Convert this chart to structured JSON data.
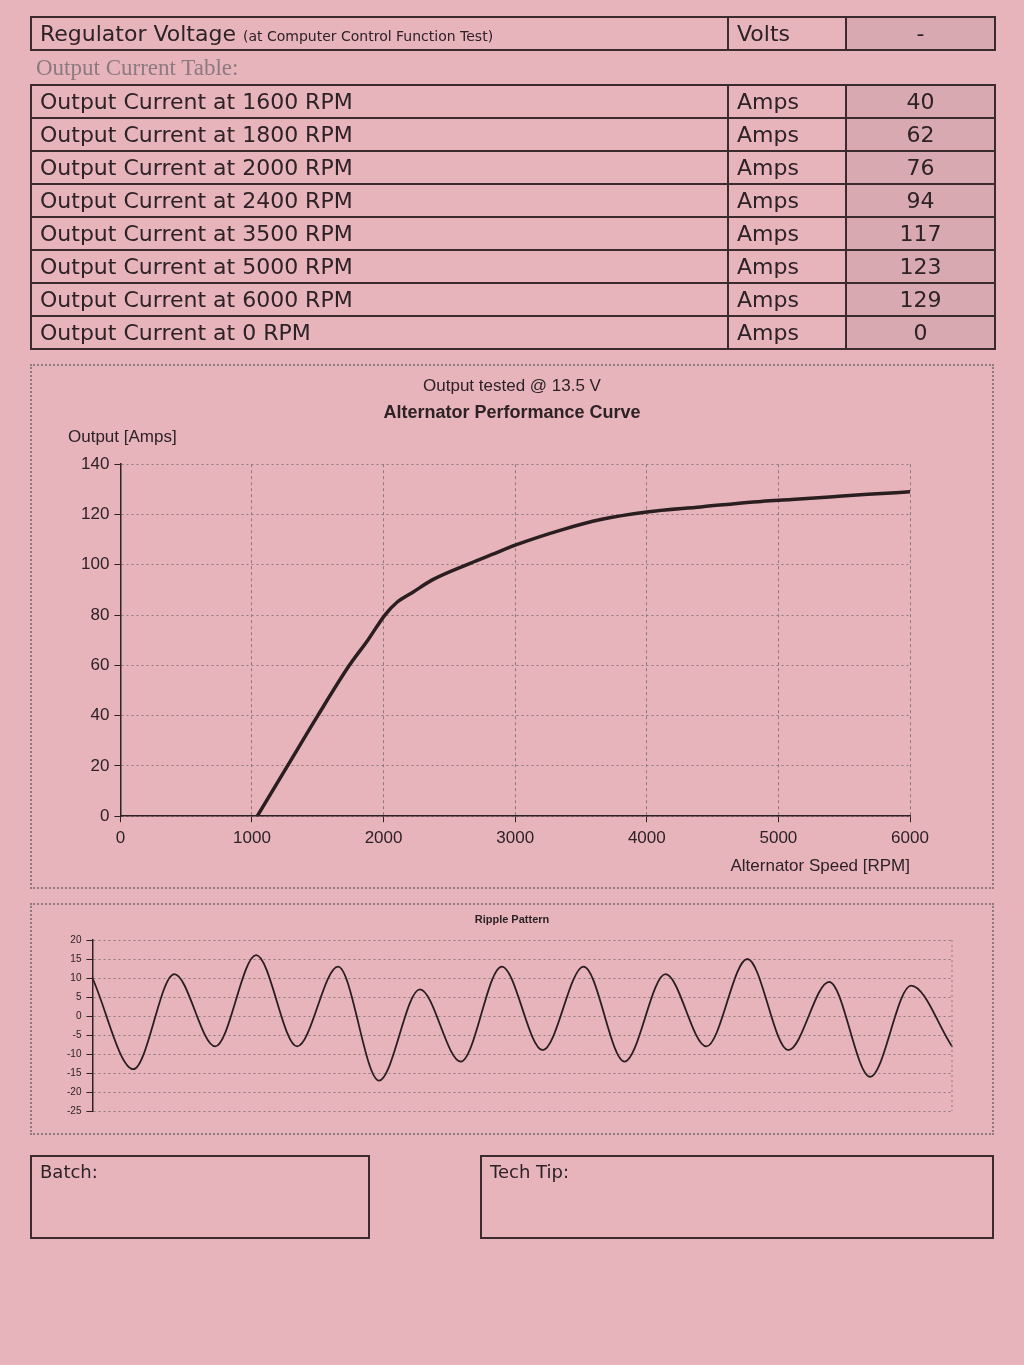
{
  "chart_data": [
    {
      "type": "other",
      "annotations": [
        "Regulator Voltage",
        "(at Computer Control Function Test)",
        "Volts",
        "-",
        "Output Current Table:"
      ],
      "categories": [
        "Output Current at 1600 RPM",
        "Output Current at 1800 RPM",
        "Output Current at 2000 RPM",
        "Output Current at 2400 RPM",
        "Output Current at 3500 RPM",
        "Output Current at 5000 RPM",
        "Output Current at 6000 RPM",
        "Output Current at 0 RPM"
      ],
      "values": [
        40,
        62,
        76,
        94,
        117,
        123,
        129,
        0
      ],
      "data_labels": true,
      "ylabel": "Amps"
    },
    {
      "type": "line",
      "title": "Alternator Performance Curve",
      "subtitle": "Output tested @ 13.5 V",
      "xlabel": "Alternator Speed [RPM]",
      "ylabel": "Output [Amps]",
      "x": [
        1040,
        1270,
        1500,
        1740,
        1880,
        2010,
        2100,
        2220,
        2370,
        2630,
        2820,
        3010,
        3360,
        3650,
        4000,
        4410,
        4810,
        5100,
        5390,
        5680,
        6000
      ],
      "values": [
        0,
        20,
        40,
        60,
        70,
        80,
        85,
        89,
        94,
        100,
        104,
        108,
        114,
        118,
        121,
        123,
        125,
        126,
        127,
        128,
        129
      ],
      "color": "#2a1e21",
      "xlim": [
        0,
        6000
      ],
      "xticks": [
        0,
        1000,
        2000,
        3000,
        4000,
        5000,
        6000
      ],
      "ylim": [
        0,
        140
      ],
      "yticks": [
        0,
        20,
        40,
        60,
        80,
        100,
        120,
        140
      ],
      "grid": true,
      "marker": "none"
    },
    {
      "type": "line",
      "title": "Ripple Pattern",
      "categories": [
        null,
        null,
        null,
        null,
        null,
        null,
        null,
        null,
        null,
        null,
        null,
        null,
        null,
        null,
        null,
        null,
        null,
        null,
        null,
        null,
        null,
        null
      ],
      "values": [
        10,
        -14,
        11,
        -8,
        16,
        -8,
        13,
        -17,
        7,
        -12,
        13,
        -9,
        13,
        -12,
        11,
        -8,
        15,
        -9,
        9,
        -16,
        8,
        -8
      ],
      "color": "#2a1e21",
      "ylim": [
        -25,
        20
      ],
      "yticks": [
        -25,
        -20,
        -15,
        -10,
        -5,
        0,
        5,
        10,
        15,
        20
      ],
      "grid": "y",
      "tick_labels": "y",
      "marker": "none"
    },
    {
      "type": "other",
      "annotations": [
        "Batch:",
        "Tech Tip:"
      ]
    }
  ]
}
